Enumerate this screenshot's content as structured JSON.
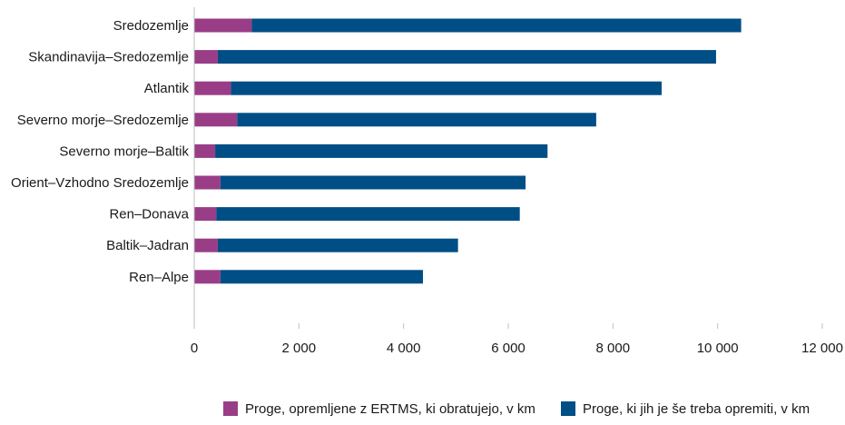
{
  "chart_data": {
    "type": "bar",
    "orientation": "horizontal",
    "stacked": true,
    "categories": [
      "Sredozemlje",
      "Skandinavija–Sredozemlje",
      "Atlantik",
      "Severno morje–Sredozemlje",
      "Severno morje–Baltik",
      "Orient–Vzhodno Sredozemlje",
      "Ren–Donava",
      "Baltik–Jadran",
      "Ren–Alpe"
    ],
    "series": [
      {
        "name": "Proge, opremljene z ERTMS, ki obratujejo, v km",
        "color": "#993d87",
        "values": [
          1100,
          450,
          700,
          820,
          400,
          500,
          420,
          450,
          500
        ]
      },
      {
        "name": "Proge, ki jih je še treba opremiti, v km",
        "color": "#004e86",
        "values": [
          9350,
          9520,
          8230,
          6860,
          6350,
          5830,
          5800,
          4590,
          3870
        ]
      }
    ],
    "xlim": [
      0,
      12000
    ],
    "xticks": [
      0,
      2000,
      4000,
      6000,
      8000,
      10000,
      12000
    ],
    "xtick_labels": [
      "0",
      "2 000",
      "4 000",
      "6 000",
      "8 000",
      "10 000",
      "12 000"
    ],
    "grid": false,
    "legend_position": "bottom"
  }
}
